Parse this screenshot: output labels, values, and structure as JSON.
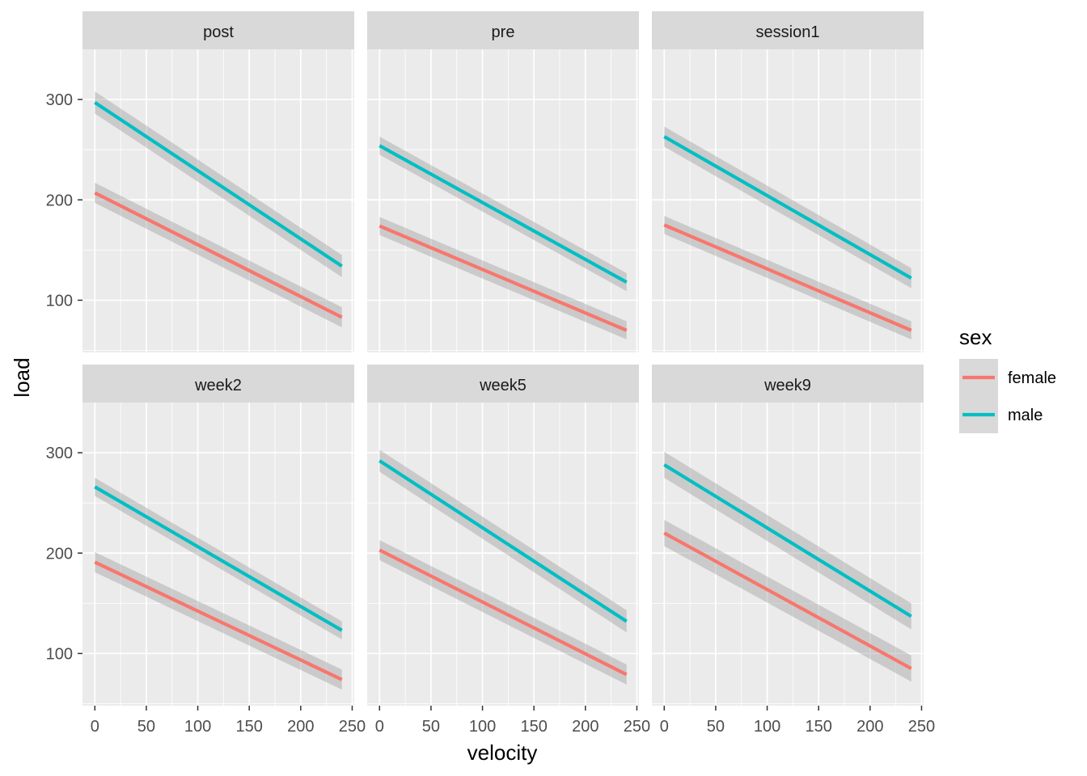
{
  "chart_data": {
    "type": "line",
    "xlabel": "velocity",
    "ylabel": "load",
    "xlim": [
      -12,
      252
    ],
    "ylim": [
      48,
      350
    ],
    "x_ticks": [
      0,
      50,
      100,
      150,
      200,
      250
    ],
    "y_ticks": [
      100,
      200,
      300
    ],
    "x_tick_labels": [
      "0",
      "50",
      "100",
      "150",
      "200",
      "250"
    ],
    "y_tick_labels": [
      "100",
      "200",
      "300"
    ],
    "grid": true,
    "legend": {
      "title": "sex",
      "position": "right",
      "entries": [
        {
          "label": "female",
          "color": "#F8766D"
        },
        {
          "label": "male",
          "color": "#00BFC4"
        }
      ]
    },
    "colors": {
      "female": "#F8766D",
      "male": "#00BFC4",
      "panel_bg": "#EBEBEB",
      "strip_bg": "#D9D9D9",
      "ribbon": "#999999"
    },
    "panels": [
      {
        "label": "post",
        "series": [
          {
            "name": "female",
            "x": [
              0,
              240
            ],
            "y": [
              207,
              83
            ],
            "band": 10
          },
          {
            "name": "male",
            "x": [
              0,
              240
            ],
            "y": [
              297,
              134
            ],
            "band": 11
          }
        ]
      },
      {
        "label": "pre",
        "series": [
          {
            "name": "female",
            "x": [
              0,
              240
            ],
            "y": [
              174,
              70
            ],
            "band": 9
          },
          {
            "name": "male",
            "x": [
              0,
              240
            ],
            "y": [
              254,
              118
            ],
            "band": 9
          }
        ]
      },
      {
        "label": "session1",
        "series": [
          {
            "name": "female",
            "x": [
              0,
              240
            ],
            "y": [
              175,
              70
            ],
            "band": 9
          },
          {
            "name": "male",
            "x": [
              0,
              240
            ],
            "y": [
              263,
              122
            ],
            "band": 10
          }
        ]
      },
      {
        "label": "week2",
        "series": [
          {
            "name": "female",
            "x": [
              0,
              240
            ],
            "y": [
              191,
              74
            ],
            "band": 10
          },
          {
            "name": "male",
            "x": [
              0,
              240
            ],
            "y": [
              266,
              123
            ],
            "band": 9
          }
        ]
      },
      {
        "label": "week5",
        "series": [
          {
            "name": "female",
            "x": [
              0,
              240
            ],
            "y": [
              203,
              79
            ],
            "band": 10
          },
          {
            "name": "male",
            "x": [
              0,
              240
            ],
            "y": [
              292,
              132
            ],
            "band": 11
          }
        ]
      },
      {
        "label": "week9",
        "series": [
          {
            "name": "female",
            "x": [
              0,
              240
            ],
            "y": [
              220,
              85
            ],
            "band": 13
          },
          {
            "name": "male",
            "x": [
              0,
              240
            ],
            "y": [
              288,
              137
            ],
            "band": 13
          }
        ]
      }
    ]
  }
}
